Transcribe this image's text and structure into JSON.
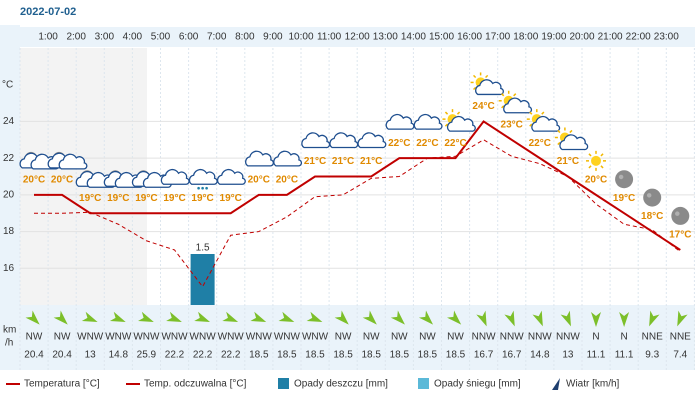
{
  "chart_data": {
    "type": "line",
    "title": "2022-07-02",
    "hour_labels": [
      "1:00",
      "2:00",
      "3:00",
      "4:00",
      "5:00",
      "6:00",
      "7:00",
      "8:00",
      "9:00",
      "10:00",
      "11:00",
      "12:00",
      "13:00",
      "14:00",
      "15:00",
      "16:00",
      "17:00",
      "18:00",
      "19:00",
      "20:00",
      "21:00",
      "22:00",
      "23:00"
    ],
    "ylabel": "°C",
    "ylim": [
      14,
      28
    ],
    "yticks": [
      16,
      18,
      20,
      22,
      24
    ],
    "grid": true,
    "series": [
      {
        "name": "Temperatura [°C]",
        "color": "#c00000",
        "dashed": false,
        "values": [
          20,
          20,
          19,
          19,
          19,
          19,
          19,
          19,
          20,
          20,
          21,
          21,
          21,
          22,
          22,
          22,
          24,
          23,
          22,
          21,
          20,
          19,
          18,
          17
        ],
        "value_labels": [
          "20°C",
          "20°C",
          "19°C",
          "19°C",
          "19°C",
          "19°C",
          "19°C",
          "19°C",
          "20°C",
          "20°C",
          "21°C",
          "21°C",
          "21°C",
          "22°C",
          "22°C",
          "22°C",
          "24°C",
          "23°C",
          "22°C",
          "21°C",
          "20°C",
          "19°C",
          "18°C",
          "17°C"
        ]
      },
      {
        "name": "Temp. odczuwalna [°C]",
        "color": "#c00000",
        "dashed": true,
        "values": [
          19,
          19,
          19.05,
          18.4,
          17.5,
          17,
          15,
          17.8,
          18,
          18.8,
          19.9,
          20,
          20.9,
          21,
          22,
          22.1,
          23,
          22.1,
          21.7,
          21,
          19.5,
          18.4,
          18.1,
          16.9
        ]
      }
    ],
    "rain": {
      "name": "Opady deszczu [mm]",
      "color": "#1f7fa6",
      "values": [
        0,
        0,
        0,
        0,
        0,
        0,
        1.5,
        0,
        0,
        0,
        0,
        0,
        0,
        0,
        0,
        0,
        0,
        0,
        0,
        0,
        0,
        0,
        0,
        0
      ]
    },
    "snow": {
      "name": "Opady śniegu [mm]",
      "color": "#5bb9d8"
    },
    "wind": {
      "name": "Wiatr [km/h]",
      "unit_label": [
        "km",
        "/h"
      ],
      "directions": [
        "NW",
        "NW",
        "WNW",
        "WNW",
        "WNW",
        "WNW",
        "WNW",
        "WNW",
        "WNW",
        "WNW",
        "WNW",
        "NW",
        "NW",
        "NW",
        "NW",
        "NW",
        "NNW",
        "NNW",
        "NNW",
        "NNW",
        "N",
        "N",
        "NNE",
        "NNE"
      ],
      "speeds": [
        20.4,
        20.4,
        13,
        14.8,
        25.9,
        22.2,
        22.2,
        22.2,
        18.5,
        18.5,
        18.5,
        18.5,
        18.5,
        18.5,
        18.5,
        18.5,
        16.7,
        16.7,
        14.8,
        13,
        11.1,
        11.1,
        9.3,
        7.4
      ]
    },
    "conditions": [
      "night-cloud",
      "night-cloud",
      "night-cloud",
      "night-cloud",
      "night-cloud",
      "cloud",
      "rain",
      "cloud",
      "cloud",
      "cloud",
      "cloud",
      "cloud",
      "cloud",
      "cloud",
      "cloud",
      "sun-cloud",
      "sun-cloud",
      "sun-cloud",
      "sun-cloud",
      "sun-cloud",
      "sun",
      "moon",
      "moon",
      "moon"
    ]
  }
}
